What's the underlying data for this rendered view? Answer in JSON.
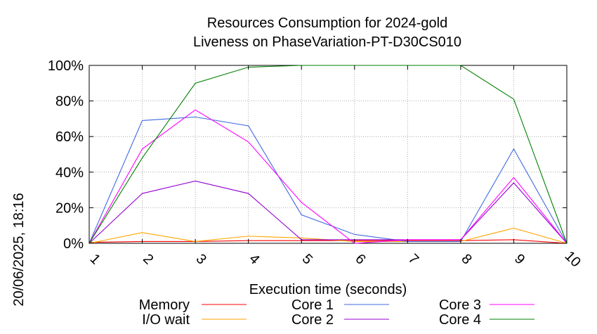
{
  "chart_data": {
    "type": "line",
    "title": "Resources Consumption for 2024-gold",
    "subtitle": "Liveness on PhaseVariation-PT-D30CS010",
    "xlabel": "Execution time (seconds)",
    "ylabel": "",
    "side_label": "20/06/2025, 18:16",
    "x": [
      1,
      2,
      3,
      4,
      5,
      6,
      7,
      8,
      9,
      10
    ],
    "x_tick_labels": [
      "1",
      "2",
      "3",
      "4",
      "5",
      "6",
      "7",
      "8",
      "9",
      "10"
    ],
    "y_tick_labels": [
      "0%",
      "20%",
      "40%",
      "60%",
      "80%",
      "100%"
    ],
    "ylim": [
      0,
      100
    ],
    "grid": true,
    "legend_position": "bottom",
    "series": [
      {
        "name": "Memory",
        "color": "#ff0000",
        "values": [
          0.5,
          1,
          1,
          1.5,
          1.5,
          1.5,
          1.5,
          1.5,
          2,
          0
        ]
      },
      {
        "name": "I/O wait",
        "color": "#ffa500",
        "values": [
          0,
          6,
          1,
          4,
          3,
          1,
          1,
          1,
          8.5,
          0
        ]
      },
      {
        "name": "Core 1",
        "color": "#4169e1",
        "values": [
          0,
          69,
          71,
          66,
          16,
          5,
          1,
          1,
          53,
          0
        ]
      },
      {
        "name": "Core 2",
        "color": "#9400d3",
        "values": [
          0,
          28,
          35,
          28,
          2,
          2,
          2,
          2,
          34,
          0
        ]
      },
      {
        "name": "Core 3",
        "color": "#ff00ff",
        "values": [
          0,
          53,
          75,
          57,
          23,
          0,
          2,
          2,
          37,
          0
        ]
      },
      {
        "name": "Core 4",
        "color": "#008000",
        "values": [
          0,
          48,
          90,
          99,
          100,
          100,
          100,
          100,
          81,
          0
        ]
      }
    ]
  }
}
